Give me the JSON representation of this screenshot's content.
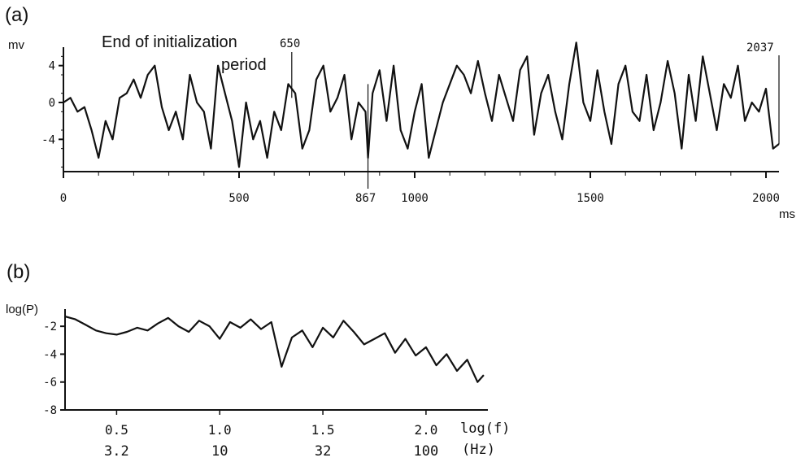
{
  "chart_data": [
    {
      "panel_label": "(a)",
      "type": "line",
      "ylabel": "mv",
      "xlabel": "ms",
      "xlim": [
        0,
        2037
      ],
      "ylim": [
        -7.5,
        6
      ],
      "x_ticks": [
        0,
        500,
        1000,
        1500,
        2000
      ],
      "x_tick_labels": [
        "0",
        "500",
        "1000",
        "1500",
        "2000"
      ],
      "y_ticks": [
        4,
        0,
        -4
      ],
      "y_tick_labels": [
        "4",
        "0",
        "-4"
      ],
      "annotations": {
        "init_line_1": "End of initialization",
        "init_line_2": "period",
        "marker_650": "650",
        "marker_867": "867",
        "marker_2037": "2037"
      },
      "markers": [
        650,
        867,
        2037
      ],
      "series": [
        {
          "x": [
            0,
            20,
            40,
            60,
            80,
            100,
            120,
            140,
            160,
            180,
            200,
            220,
            240,
            260,
            280,
            300,
            320,
            340,
            360,
            380,
            400,
            420,
            440,
            460,
            480,
            500,
            520,
            540,
            560,
            580,
            600,
            620,
            640,
            660,
            680,
            700,
            720,
            740,
            760,
            780,
            800,
            820,
            840,
            860,
            867,
            880,
            900,
            920,
            940,
            960,
            980,
            1000,
            1020,
            1040,
            1060,
            1080,
            1100,
            1120,
            1140,
            1160,
            1180,
            1200,
            1220,
            1240,
            1260,
            1280,
            1300,
            1320,
            1340,
            1360,
            1380,
            1400,
            1420,
            1440,
            1460,
            1480,
            1500,
            1520,
            1540,
            1560,
            1580,
            1600,
            1620,
            1640,
            1660,
            1680,
            1700,
            1720,
            1740,
            1760,
            1780,
            1800,
            1820,
            1840,
            1860,
            1880,
            1900,
            1920,
            1940,
            1960,
            1980,
            2000,
            2020,
            2037
          ],
          "y": [
            0,
            0.5,
            -1,
            -0.5,
            -3,
            -6,
            -2,
            -4,
            0.5,
            1,
            2.5,
            0.5,
            3,
            4,
            -0.5,
            -3,
            -1,
            -4,
            3,
            0,
            -1,
            -5,
            4,
            1,
            -2,
            -7,
            0,
            -4,
            -2,
            -6,
            -1,
            -3,
            2,
            1,
            -5,
            -3,
            2.5,
            4,
            -1,
            0.5,
            3,
            -4,
            0,
            -1,
            -6,
            1,
            3.5,
            -2,
            4,
            -3,
            -5,
            -1,
            2,
            -6,
            -3,
            0,
            2,
            4,
            3,
            1,
            4.5,
            1,
            -2,
            3,
            0.5,
            -2,
            3.5,
            5,
            -3.5,
            1,
            3,
            -1,
            -4,
            2,
            6.5,
            0,
            -2,
            3.5,
            -1,
            -4.5,
            2,
            4,
            -1,
            -2,
            3,
            -3,
            0,
            4.5,
            1,
            -5,
            3,
            -2,
            5,
            1,
            -3,
            2,
            0.5,
            4,
            -2,
            0,
            -1,
            1.5,
            -5,
            -4.5
          ]
        }
      ]
    },
    {
      "panel_label": "(b)",
      "type": "line",
      "ylabel": "log(P)",
      "xlabel": "log(f)",
      "xlabel2": "(Hz)",
      "xlim": [
        0.25,
        2.3
      ],
      "ylim": [
        -8,
        -1
      ],
      "x_ticks": [
        0.5,
        1.0,
        1.5,
        2.0
      ],
      "x_tick_labels": [
        "0.5",
        "1.0",
        "1.5",
        "2.0"
      ],
      "x_tick_labels_hz": [
        "3.2",
        "10",
        "32",
        "100"
      ],
      "y_ticks": [
        -2,
        -4,
        -6,
        -8
      ],
      "y_tick_labels": [
        "-2",
        "-4",
        "-6",
        "-8"
      ],
      "series": [
        {
          "x": [
            0.25,
            0.3,
            0.35,
            0.4,
            0.45,
            0.5,
            0.55,
            0.6,
            0.65,
            0.7,
            0.75,
            0.8,
            0.85,
            0.9,
            0.95,
            1.0,
            1.05,
            1.1,
            1.15,
            1.2,
            1.25,
            1.3,
            1.35,
            1.4,
            1.45,
            1.5,
            1.55,
            1.6,
            1.65,
            1.7,
            1.75,
            1.8,
            1.85,
            1.9,
            1.95,
            2.0,
            2.05,
            2.1,
            2.15,
            2.2,
            2.25,
            2.28
          ],
          "y": [
            -1.3,
            -1.5,
            -1.9,
            -2.3,
            -2.5,
            -2.6,
            -2.4,
            -2.1,
            -2.3,
            -1.8,
            -1.4,
            -2.0,
            -2.4,
            -1.6,
            -2.0,
            -2.9,
            -1.7,
            -2.1,
            -1.5,
            -2.2,
            -1.7,
            -4.9,
            -2.8,
            -2.3,
            -3.5,
            -2.1,
            -2.8,
            -1.6,
            -2.4,
            -3.3,
            -2.9,
            -2.5,
            -3.9,
            -2.9,
            -4.1,
            -3.5,
            -4.8,
            -4.0,
            -5.2,
            -4.4,
            -6.0,
            -5.5
          ]
        }
      ]
    }
  ]
}
